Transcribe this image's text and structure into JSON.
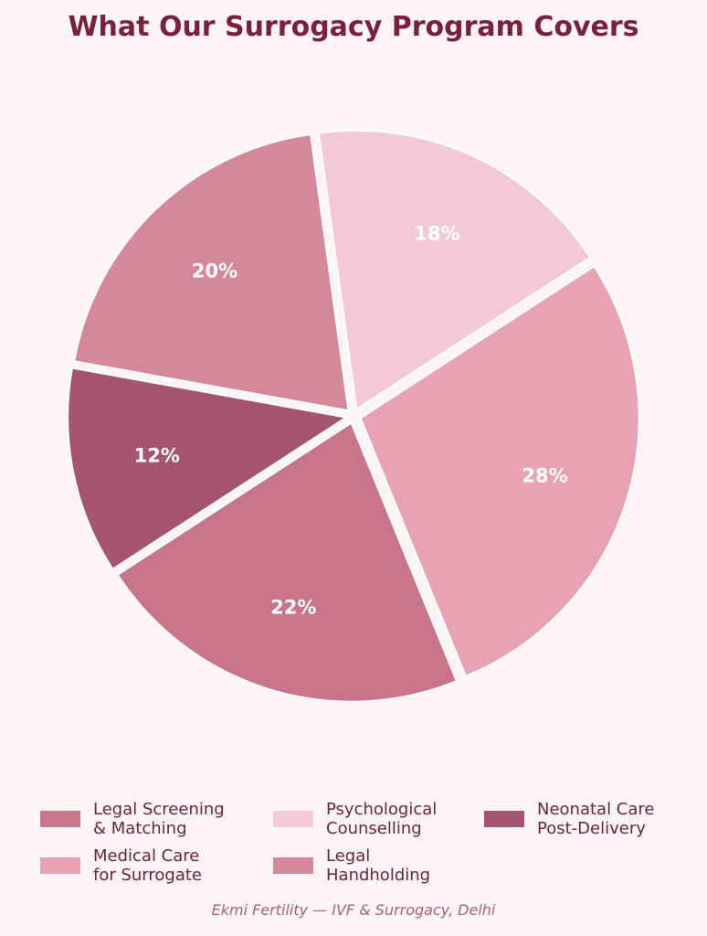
{
  "chart_data": {
    "type": "pie",
    "title": "What Our Surrogacy Program Covers",
    "categories": [
      "Legal Screening\n& Matching",
      "Medical Care\nfor Surrogate",
      "Psychological\nCounselling",
      "Legal\nHandholding",
      "Neonatal Care\nPost-Delivery"
    ],
    "values": [
      22,
      28,
      18,
      20,
      12
    ],
    "value_labels": [
      "22%",
      "28%",
      "18%",
      "20%",
      "12%"
    ],
    "colors": [
      "#c87489",
      "#e8a3b2",
      "#f3cad4",
      "#d4889a",
      "#a5566d"
    ],
    "legend_placement": "bottom"
  },
  "footer": "Ekmi Fertility — IVF & Surrogacy, Delhi"
}
